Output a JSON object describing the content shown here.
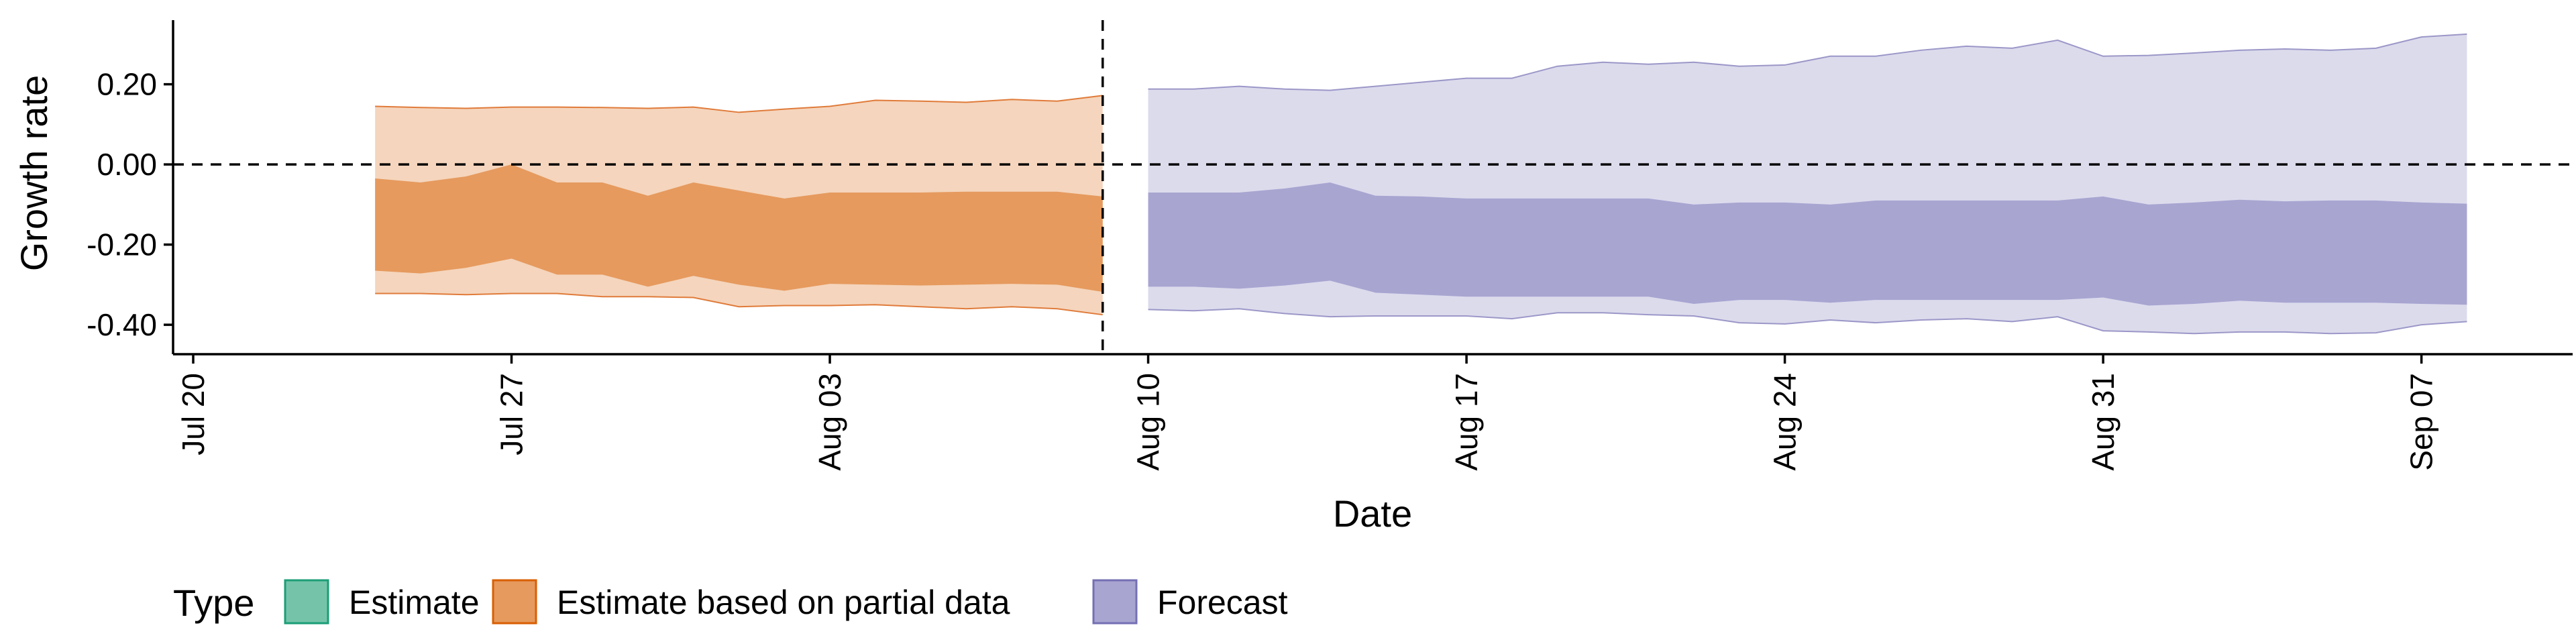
{
  "chart_data": {
    "type": "area",
    "xlabel": "Date",
    "ylabel": "Growth rate",
    "x_ticks": [
      "Jul 20",
      "Jul 27",
      "Aug 03",
      "Aug 10",
      "Aug 17",
      "Aug 24",
      "Aug 31",
      "Sep 07"
    ],
    "x_tick_dates": [
      "2020-07-20",
      "2020-07-27",
      "2020-08-03",
      "2020-08-10",
      "2020-08-17",
      "2020-08-24",
      "2020-08-31",
      "2020-09-07"
    ],
    "xlim": [
      "2020-07-20",
      "2020-09-10"
    ],
    "y_ticks": [
      "0.20",
      "0.00",
      "-0.20",
      "-0.40"
    ],
    "y_tick_values": [
      0.2,
      0.0,
      -0.2,
      -0.4
    ],
    "ylim": [
      -0.45,
      0.36
    ],
    "reference_lines": {
      "horizontal_y": 0.0,
      "vertical_x": "2020-08-09",
      "style": "dashed"
    },
    "grid": false,
    "legend": {
      "title": "Type",
      "position": "bottom",
      "entries": [
        {
          "label": "Estimate",
          "fill": "#75c4a9",
          "stroke": "#1b9e77"
        },
        {
          "label": "Estimate based on partial data",
          "fill": "#e69a5e",
          "stroke": "#d95f02"
        },
        {
          "label": "Forecast",
          "fill": "#a8a5d1",
          "stroke": "#7570b3"
        }
      ]
    },
    "series": [
      {
        "type": "Estimate based on partial data",
        "outer_fill": "#f5d5bd",
        "inner_fill": "#e69a5e",
        "outer_stroke": "#e07b3a",
        "dates": [
          "2020-07-24",
          "2020-07-25",
          "2020-07-26",
          "2020-07-27",
          "2020-07-28",
          "2020-07-29",
          "2020-07-30",
          "2020-07-31",
          "2020-08-01",
          "2020-08-02",
          "2020-08-03",
          "2020-08-04",
          "2020-08-05",
          "2020-08-06",
          "2020-08-07",
          "2020-08-08",
          "2020-08-09"
        ],
        "outer_upper": [
          0.145,
          0.142,
          0.14,
          0.143,
          0.143,
          0.142,
          0.14,
          0.143,
          0.13,
          0.138,
          0.145,
          0.16,
          0.158,
          0.155,
          0.162,
          0.158,
          0.172
        ],
        "inner_upper": [
          -0.035,
          -0.045,
          -0.03,
          0.0,
          -0.045,
          -0.045,
          -0.078,
          -0.045,
          -0.065,
          -0.085,
          -0.07,
          -0.07,
          -0.07,
          -0.068,
          -0.068,
          -0.068,
          -0.08
        ],
        "inner_lower": [
          -0.265,
          -0.272,
          -0.258,
          -0.235,
          -0.275,
          -0.275,
          -0.305,
          -0.278,
          -0.3,
          -0.315,
          -0.298,
          -0.3,
          -0.302,
          -0.3,
          -0.298,
          -0.3,
          -0.318
        ],
        "outer_lower": [
          -0.322,
          -0.322,
          -0.325,
          -0.322,
          -0.322,
          -0.33,
          -0.33,
          -0.332,
          -0.355,
          -0.352,
          -0.352,
          -0.35,
          -0.355,
          -0.36,
          -0.355,
          -0.36,
          -0.375
        ]
      },
      {
        "type": "Forecast",
        "outer_fill": "#dcdbec",
        "inner_fill": "#a8a5d1",
        "outer_stroke": "#9b97c8",
        "dates": [
          "2020-08-10",
          "2020-08-11",
          "2020-08-12",
          "2020-08-13",
          "2020-08-14",
          "2020-08-15",
          "2020-08-16",
          "2020-08-17",
          "2020-08-18",
          "2020-08-19",
          "2020-08-20",
          "2020-08-21",
          "2020-08-22",
          "2020-08-23",
          "2020-08-24",
          "2020-08-25",
          "2020-08-26",
          "2020-08-27",
          "2020-08-28",
          "2020-08-29",
          "2020-08-30",
          "2020-08-31",
          "2020-09-01",
          "2020-09-02",
          "2020-09-03",
          "2020-09-04",
          "2020-09-05",
          "2020-09-06",
          "2020-09-07",
          "2020-09-08"
        ],
        "outer_upper": [
          0.188,
          0.188,
          0.195,
          0.188,
          0.185,
          0.195,
          0.205,
          0.215,
          0.215,
          0.245,
          0.255,
          0.25,
          0.255,
          0.245,
          0.248,
          0.27,
          0.27,
          0.285,
          0.295,
          0.29,
          0.31,
          0.27,
          0.272,
          0.278,
          0.285,
          0.288,
          0.285,
          0.29,
          0.318,
          0.325
        ],
        "inner_upper": [
          -0.07,
          -0.07,
          -0.07,
          -0.06,
          -0.045,
          -0.078,
          -0.08,
          -0.085,
          -0.085,
          -0.085,
          -0.085,
          -0.085,
          -0.1,
          -0.095,
          -0.095,
          -0.1,
          -0.09,
          -0.09,
          -0.09,
          -0.09,
          -0.09,
          -0.08,
          -0.1,
          -0.095,
          -0.088,
          -0.092,
          -0.09,
          -0.09,
          -0.095,
          -0.098
        ],
        "inner_lower": [
          -0.305,
          -0.305,
          -0.31,
          -0.302,
          -0.29,
          -0.32,
          -0.325,
          -0.33,
          -0.33,
          -0.33,
          -0.33,
          -0.33,
          -0.348,
          -0.338,
          -0.338,
          -0.345,
          -0.338,
          -0.338,
          -0.338,
          -0.338,
          -0.338,
          -0.332,
          -0.352,
          -0.348,
          -0.34,
          -0.345,
          -0.345,
          -0.345,
          -0.348,
          -0.35
        ],
        "outer_lower": [
          -0.362,
          -0.365,
          -0.36,
          -0.372,
          -0.38,
          -0.378,
          -0.378,
          -0.378,
          -0.385,
          -0.37,
          -0.37,
          -0.375,
          -0.378,
          -0.395,
          -0.398,
          -0.388,
          -0.395,
          -0.388,
          -0.385,
          -0.392,
          -0.38,
          -0.415,
          -0.418,
          -0.422,
          -0.418,
          -0.418,
          -0.422,
          -0.42,
          -0.4,
          -0.392
        ]
      }
    ]
  }
}
